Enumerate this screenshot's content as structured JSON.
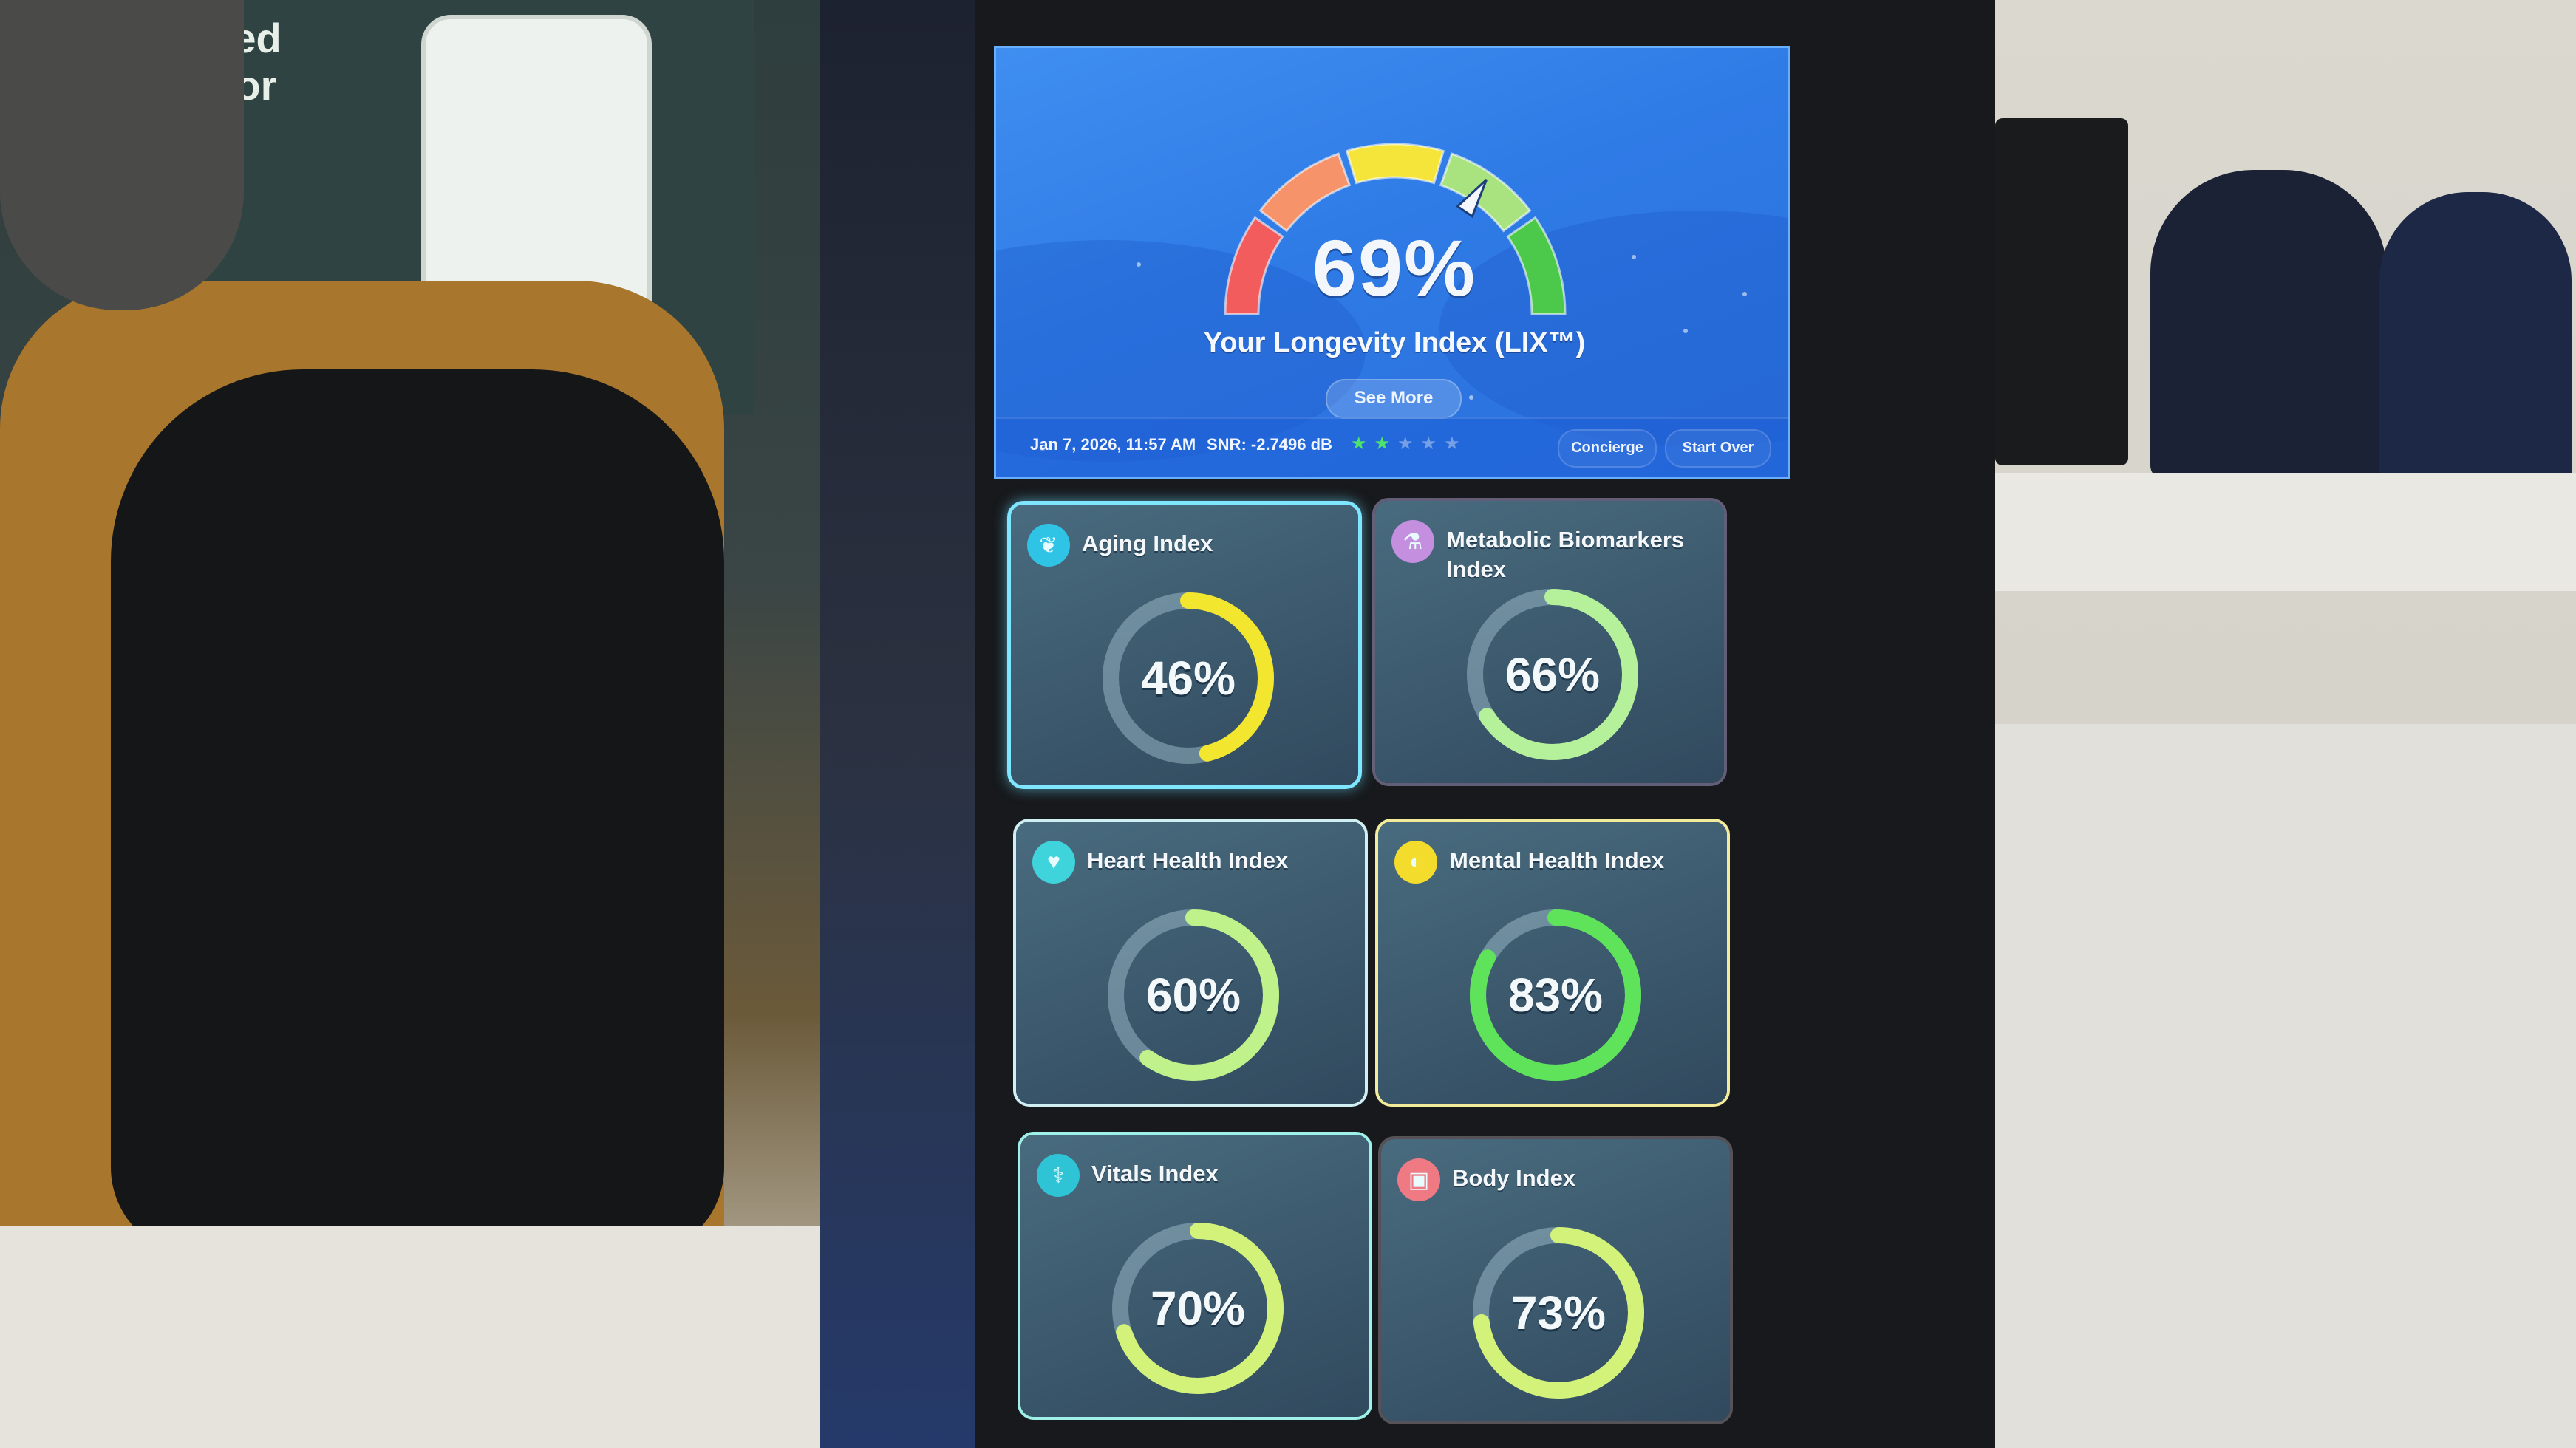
{
  "backdrop": {
    "banner_text_line1": "nced",
    "banner_text_line2": "nitor"
  },
  "header": {
    "gauge": {
      "value_label": "69%",
      "value": 69,
      "segments": [
        {
          "name": "red",
          "color": "#f25c5c"
        },
        {
          "name": "orange",
          "color": "#f7936a"
        },
        {
          "name": "yellow",
          "color": "#f5e53a"
        },
        {
          "name": "light-green",
          "color": "#a9e37f"
        },
        {
          "name": "green",
          "color": "#4cc94a"
        }
      ]
    },
    "title": "Your Longevity Index (LIX™)",
    "see_more_label": "See More"
  },
  "footer": {
    "datetime": "Jan 7, 2026, 11:57 AM",
    "snr": "SNR: -2.7496 dB",
    "stars_filled": 2,
    "stars_total": 5,
    "concierge_label": "Concierge",
    "start_over_label": "Start Over"
  },
  "cards": [
    {
      "title": "Aging Index",
      "value_label": "46%",
      "value": 46,
      "ring_color": "#f3e62f",
      "icon": "leaf-icon",
      "icon_bg": "#2fc3e6",
      "border": "#7fe6ff",
      "selected": true
    },
    {
      "title": "Metabolic Biomarkers Index",
      "value_label": "66%",
      "value": 66,
      "ring_color": "#b5f19a",
      "icon": "flask-icon",
      "icon_bg": "#c58fe0",
      "border": "rgba(190,180,230,0.45)",
      "selected": false
    },
    {
      "title": "Heart Health Index",
      "value_label": "60%",
      "value": 60,
      "ring_color": "#bff28a",
      "icon": "heart-pulse-icon",
      "icon_bg": "#3fd3dc",
      "border": "#cfeff2",
      "selected": false
    },
    {
      "title": "Mental Health Index",
      "value_label": "83%",
      "value": 83,
      "ring_color": "#5fe35a",
      "icon": "brain-icon",
      "icon_bg": "#f3dc2c",
      "border": "#f2ec9a",
      "selected": false
    },
    {
      "title": "Vitals Index",
      "value_label": "70%",
      "value": 70,
      "ring_color": "#d3f27a",
      "icon": "stethoscope-icon",
      "icon_bg": "#2fc3d6",
      "border": "#9ff0e8",
      "selected": false
    },
    {
      "title": "Body Index",
      "value_label": "73%",
      "value": 73,
      "ring_color": "#d3f27a",
      "icon": "scale-icon",
      "icon_bg": "#f07a84",
      "border": "rgba(200,190,200,0.35)",
      "selected": false
    }
  ]
}
